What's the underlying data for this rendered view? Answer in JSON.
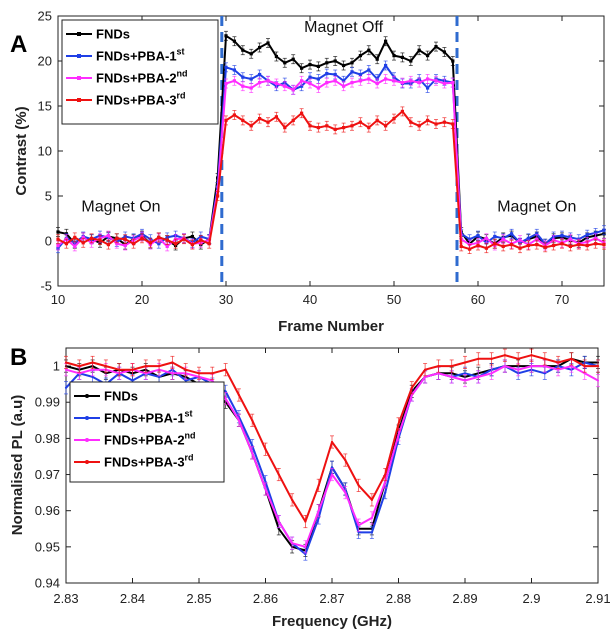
{
  "chart_data": [
    {
      "panel": "A",
      "type": "line",
      "xlabel": "Frame Number",
      "ylabel": "Contrast (%)",
      "xlim": [
        10,
        75
      ],
      "ylim": [
        -5,
        25
      ],
      "xticks": [
        10,
        20,
        30,
        40,
        50,
        60,
        70
      ],
      "yticks": [
        -5,
        0,
        5,
        10,
        15,
        20,
        25
      ],
      "vlines": [
        29.5,
        57.5
      ],
      "annotations": [
        {
          "text": "Magnet Off",
          "x": 44,
          "y": 23.2
        },
        {
          "text": "Magnet On",
          "x": 17.5,
          "y": 3.3
        },
        {
          "text": "Magnet On",
          "x": 67,
          "y": 3.3
        }
      ],
      "legend_position": "top-left",
      "series": [
        {
          "name": "FNDs",
          "sup": "",
          "color": "#000000",
          "x": [
            10,
            11,
            12,
            13,
            14,
            15,
            16,
            17,
            18,
            19,
            20,
            21,
            22,
            23,
            24,
            25,
            26,
            27,
            28,
            29,
            30,
            31,
            32,
            33,
            34,
            35,
            36,
            37,
            38,
            39,
            40,
            41,
            42,
            43,
            44,
            45,
            46,
            47,
            48,
            49,
            50,
            51,
            52,
            53,
            54,
            55,
            56,
            57,
            58,
            59,
            60,
            61,
            62,
            63,
            64,
            65,
            66,
            67,
            68,
            69,
            70,
            71,
            72,
            73,
            74,
            75
          ],
          "values": [
            1.0,
            0.8,
            -0.3,
            0.4,
            0.2,
            -0.2,
            0.5,
            0.3,
            -0.4,
            0.2,
            0.6,
            -0.3,
            0.4,
            0.1,
            -0.5,
            0.3,
            0.5,
            -0.4,
            0.2,
            7.0,
            22.8,
            22.2,
            21.2,
            20.8,
            21.5,
            22.0,
            20.5,
            19.8,
            20.2,
            19.2,
            19.6,
            19.4,
            19.8,
            20.0,
            19.5,
            19.8,
            20.6,
            21.2,
            20.2,
            22.2,
            20.6,
            20.4,
            20.0,
            21.2,
            20.6,
            21.6,
            21.0,
            20.0,
            1.0,
            -0.3,
            0.5,
            0.2,
            -0.3,
            0.4,
            0.6,
            -0.2,
            0.2,
            0.5,
            -0.3,
            0.3,
            0.4,
            0.1,
            -0.2,
            0.4,
            0.6,
            0.8
          ]
        },
        {
          "name": "FNDs+PBA-1",
          "sup": "st",
          "color": "#1f3fe6",
          "x": [
            10,
            11,
            12,
            13,
            14,
            15,
            16,
            17,
            18,
            19,
            20,
            21,
            22,
            23,
            24,
            25,
            26,
            27,
            28,
            29,
            30,
            31,
            32,
            33,
            34,
            35,
            36,
            37,
            38,
            39,
            40,
            41,
            42,
            43,
            44,
            45,
            46,
            47,
            48,
            49,
            50,
            51,
            52,
            53,
            54,
            55,
            56,
            57,
            58,
            59,
            60,
            61,
            62,
            63,
            64,
            65,
            66,
            67,
            68,
            69,
            70,
            71,
            72,
            73,
            74,
            75
          ],
          "values": [
            -0.8,
            0.3,
            -0.2,
            0.5,
            0.2,
            0.6,
            0.4,
            -0.1,
            0.5,
            0.3,
            0.8,
            0.2,
            -0.3,
            0.4,
            0.6,
            0.3,
            -0.2,
            0.5,
            0.2,
            6.0,
            19.3,
            19.0,
            18.2,
            18.0,
            18.5,
            17.8,
            17.2,
            17.6,
            16.8,
            17.2,
            18.2,
            18.0,
            18.6,
            18.5,
            17.8,
            18.8,
            18.5,
            19.0,
            18.0,
            19.5,
            18.2,
            17.5,
            17.5,
            18.0,
            17.0,
            18.0,
            17.8,
            17.6,
            0.8,
            0.2,
            0.6,
            -0.2,
            0.5,
            0.3,
            0.8,
            -0.2,
            0.3,
            0.8,
            -0.3,
            0.5,
            0.6,
            0.4,
            0.2,
            0.7,
            0.9,
            1.2
          ]
        },
        {
          "name": "FNDs+PBA-2",
          "sup": "nd",
          "color": "#ff2cff",
          "x": [
            10,
            11,
            12,
            13,
            14,
            15,
            16,
            17,
            18,
            19,
            20,
            21,
            22,
            23,
            24,
            25,
            26,
            27,
            28,
            29,
            30,
            31,
            32,
            33,
            34,
            35,
            36,
            37,
            38,
            39,
            40,
            41,
            42,
            43,
            44,
            45,
            46,
            47,
            48,
            49,
            50,
            51,
            52,
            53,
            54,
            55,
            56,
            57,
            58,
            59,
            60,
            61,
            62,
            63,
            64,
            65,
            66,
            67,
            68,
            69,
            70,
            71,
            72,
            73,
            74,
            75
          ],
          "values": [
            -0.5,
            0.2,
            -0.6,
            0.4,
            -0.2,
            0.3,
            0.6,
            -0.3,
            -0.5,
            0.1,
            0.5,
            -0.4,
            0.3,
            -0.6,
            0.2,
            0.3,
            -0.3,
            -0.2,
            0.1,
            5.5,
            17.5,
            17.8,
            17.2,
            17.0,
            17.6,
            17.8,
            17.5,
            17.2,
            16.8,
            17.8,
            17.5,
            17.0,
            17.6,
            17.8,
            17.2,
            17.6,
            17.8,
            18.0,
            17.5,
            18.0,
            17.8,
            17.6,
            17.8,
            17.6,
            18.0,
            17.8,
            17.5,
            17.6,
            0.2,
            -0.4,
            -0.2,
            0.3,
            -0.5,
            0.2,
            -0.3,
            0.1,
            -0.4,
            0.2,
            -0.5,
            0.1,
            -0.2,
            0.2,
            -0.3,
            -0.1,
            0.3,
            -0.2
          ]
        },
        {
          "name": "FNDs+PBA-3",
          "sup": "rd",
          "color": "#ee1111",
          "x": [
            10,
            11,
            12,
            13,
            14,
            15,
            16,
            17,
            18,
            19,
            20,
            21,
            22,
            23,
            24,
            25,
            26,
            27,
            28,
            29,
            30,
            31,
            32,
            33,
            34,
            35,
            36,
            37,
            38,
            39,
            40,
            41,
            42,
            43,
            44,
            45,
            46,
            47,
            48,
            49,
            50,
            51,
            52,
            53,
            54,
            55,
            56,
            57,
            58,
            59,
            60,
            61,
            62,
            63,
            64,
            65,
            66,
            67,
            68,
            69,
            70,
            71,
            72,
            73,
            74,
            75
          ],
          "values": [
            0.2,
            -0.3,
            0.4,
            -0.2,
            0.3,
            0.1,
            -0.4,
            0.3,
            0.2,
            -0.3,
            0.3,
            -0.2,
            0.4,
            0.1,
            -0.3,
            0.2,
            -0.4,
            0.1,
            -0.3,
            5.0,
            13.4,
            14.0,
            13.4,
            12.8,
            13.6,
            13.2,
            13.8,
            12.6,
            13.4,
            14.2,
            12.8,
            12.6,
            12.8,
            12.4,
            12.6,
            12.8,
            13.2,
            12.6,
            13.4,
            12.8,
            13.6,
            14.4,
            13.2,
            12.8,
            13.4,
            13.0,
            13.2,
            13.0,
            -0.6,
            -0.9,
            -0.5,
            -0.8,
            -0.3,
            -0.6,
            -0.4,
            -0.8,
            -0.5,
            -0.4,
            -0.7,
            -0.5,
            -0.3,
            -0.6,
            -0.4,
            -0.5,
            -0.3,
            -0.4
          ]
        }
      ]
    },
    {
      "panel": "B",
      "type": "line",
      "xlabel": "Frequency (GHz)",
      "ylabel": "Normalised PL (a.u)",
      "xlim": [
        2.83,
        2.91
      ],
      "ylim": [
        0.94,
        1.005
      ],
      "xticks": [
        2.83,
        2.84,
        2.85,
        2.86,
        2.87,
        2.88,
        2.89,
        2.9,
        2.91
      ],
      "xtick_labels": [
        "2.83",
        "2.84",
        "2.85",
        "2.86",
        "2.87",
        "2.88",
        "2.89",
        "2.9",
        "2.91"
      ],
      "yticks": [
        0.94,
        0.95,
        0.96,
        0.97,
        0.98,
        0.99,
        1
      ],
      "ytick_labels": [
        "0.94",
        "0.95",
        "0.96",
        "0.97",
        "0.98",
        "0.99",
        "1"
      ],
      "legend_position": "middle-left",
      "series": [
        {
          "name": "FNDs",
          "sup": "",
          "color": "#000000",
          "x": [
            2.83,
            2.832,
            2.834,
            2.836,
            2.838,
            2.84,
            2.842,
            2.844,
            2.846,
            2.848,
            2.85,
            2.852,
            2.854,
            2.856,
            2.858,
            2.86,
            2.862,
            2.864,
            2.866,
            2.868,
            2.87,
            2.872,
            2.874,
            2.876,
            2.878,
            2.88,
            2.882,
            2.884,
            2.886,
            2.888,
            2.89,
            2.892,
            2.894,
            2.896,
            2.898,
            2.9,
            2.902,
            2.904,
            2.906,
            2.908,
            2.91
          ],
          "values": [
            1.0,
            0.999,
            1.0,
            0.998,
            0.999,
            0.998,
            0.999,
            0.997,
            0.998,
            0.997,
            0.995,
            0.993,
            0.99,
            0.985,
            0.976,
            0.966,
            0.955,
            0.95,
            0.949,
            0.96,
            0.972,
            0.966,
            0.955,
            0.955,
            0.968,
            0.982,
            0.993,
            0.997,
            0.998,
            0.998,
            0.997,
            0.998,
            0.999,
            1.0,
            1.0,
            1.0,
            1.0,
            1.0,
            1.002,
            1.001,
            1.001
          ]
        },
        {
          "name": "FNDs+PBA-1",
          "sup": "st",
          "color": "#1f3fe6",
          "x": [
            2.83,
            2.832,
            2.834,
            2.836,
            2.838,
            2.84,
            2.842,
            2.844,
            2.846,
            2.848,
            2.85,
            2.852,
            2.854,
            2.856,
            2.858,
            2.86,
            2.862,
            2.864,
            2.866,
            2.868,
            2.87,
            2.872,
            2.874,
            2.876,
            2.878,
            2.88,
            2.882,
            2.884,
            2.886,
            2.888,
            2.89,
            2.892,
            2.894,
            2.896,
            2.898,
            2.9,
            2.902,
            2.904,
            2.906,
            2.908,
            2.91
          ],
          "values": [
            0.994,
            0.998,
            0.997,
            0.995,
            0.998,
            0.996,
            0.998,
            0.997,
            0.999,
            0.996,
            0.997,
            0.995,
            0.993,
            0.986,
            0.978,
            0.968,
            0.957,
            0.951,
            0.948,
            0.958,
            0.972,
            0.966,
            0.954,
            0.954,
            0.965,
            0.98,
            0.992,
            0.997,
            0.998,
            0.997,
            0.998,
            0.997,
            0.999,
            1.0,
            0.998,
            0.999,
            0.998,
            1.0,
            0.999,
            1.001,
            1.0
          ]
        },
        {
          "name": "FNDs+PBA-2",
          "sup": "nd",
          "color": "#ff2cff",
          "x": [
            2.83,
            2.832,
            2.834,
            2.836,
            2.838,
            2.84,
            2.842,
            2.844,
            2.846,
            2.848,
            2.85,
            2.852,
            2.854,
            2.856,
            2.858,
            2.86,
            2.862,
            2.864,
            2.866,
            2.868,
            2.87,
            2.872,
            2.874,
            2.876,
            2.878,
            2.88,
            2.882,
            2.884,
            2.886,
            2.888,
            2.89,
            2.892,
            2.894,
            2.896,
            2.898,
            2.9,
            2.902,
            2.904,
            2.906,
            2.908,
            2.91
          ],
          "values": [
            0.999,
            0.998,
            0.999,
            0.999,
            0.998,
            0.999,
            0.998,
            0.999,
            0.998,
            0.998,
            0.997,
            0.996,
            0.991,
            0.985,
            0.976,
            0.966,
            0.957,
            0.951,
            0.95,
            0.96,
            0.97,
            0.965,
            0.956,
            0.958,
            0.968,
            0.981,
            0.992,
            0.997,
            0.998,
            0.997,
            0.996,
            0.997,
            0.998,
            1.0,
            0.999,
            1.0,
            1.0,
            0.999,
            1.0,
            0.998,
            0.996
          ]
        },
        {
          "name": "FNDs+PBA-3",
          "sup": "rd",
          "color": "#ee1111",
          "x": [
            2.83,
            2.832,
            2.834,
            2.836,
            2.838,
            2.84,
            2.842,
            2.844,
            2.846,
            2.848,
            2.85,
            2.852,
            2.854,
            2.856,
            2.858,
            2.86,
            2.862,
            2.864,
            2.866,
            2.868,
            2.87,
            2.872,
            2.874,
            2.876,
            2.878,
            2.88,
            2.882,
            2.884,
            2.886,
            2.888,
            2.89,
            2.892,
            2.894,
            2.896,
            2.898,
            2.9,
            2.902,
            2.904,
            2.906,
            2.908,
            2.91
          ],
          "values": [
            1.001,
            1.0,
            1.001,
            1.0,
            0.999,
            0.999,
            1.0,
            1.0,
            1.001,
            0.999,
            0.998,
            0.998,
            0.999,
            0.992,
            0.985,
            0.977,
            0.97,
            0.963,
            0.957,
            0.967,
            0.979,
            0.974,
            0.967,
            0.963,
            0.97,
            0.984,
            0.994,
            0.999,
            1.0,
            1.0,
            1.001,
            1.002,
            1.002,
            1.003,
            1.002,
            1.003,
            1.002,
            1.001,
            1.002,
            1.0,
            1.0
          ]
        }
      ]
    }
  ]
}
